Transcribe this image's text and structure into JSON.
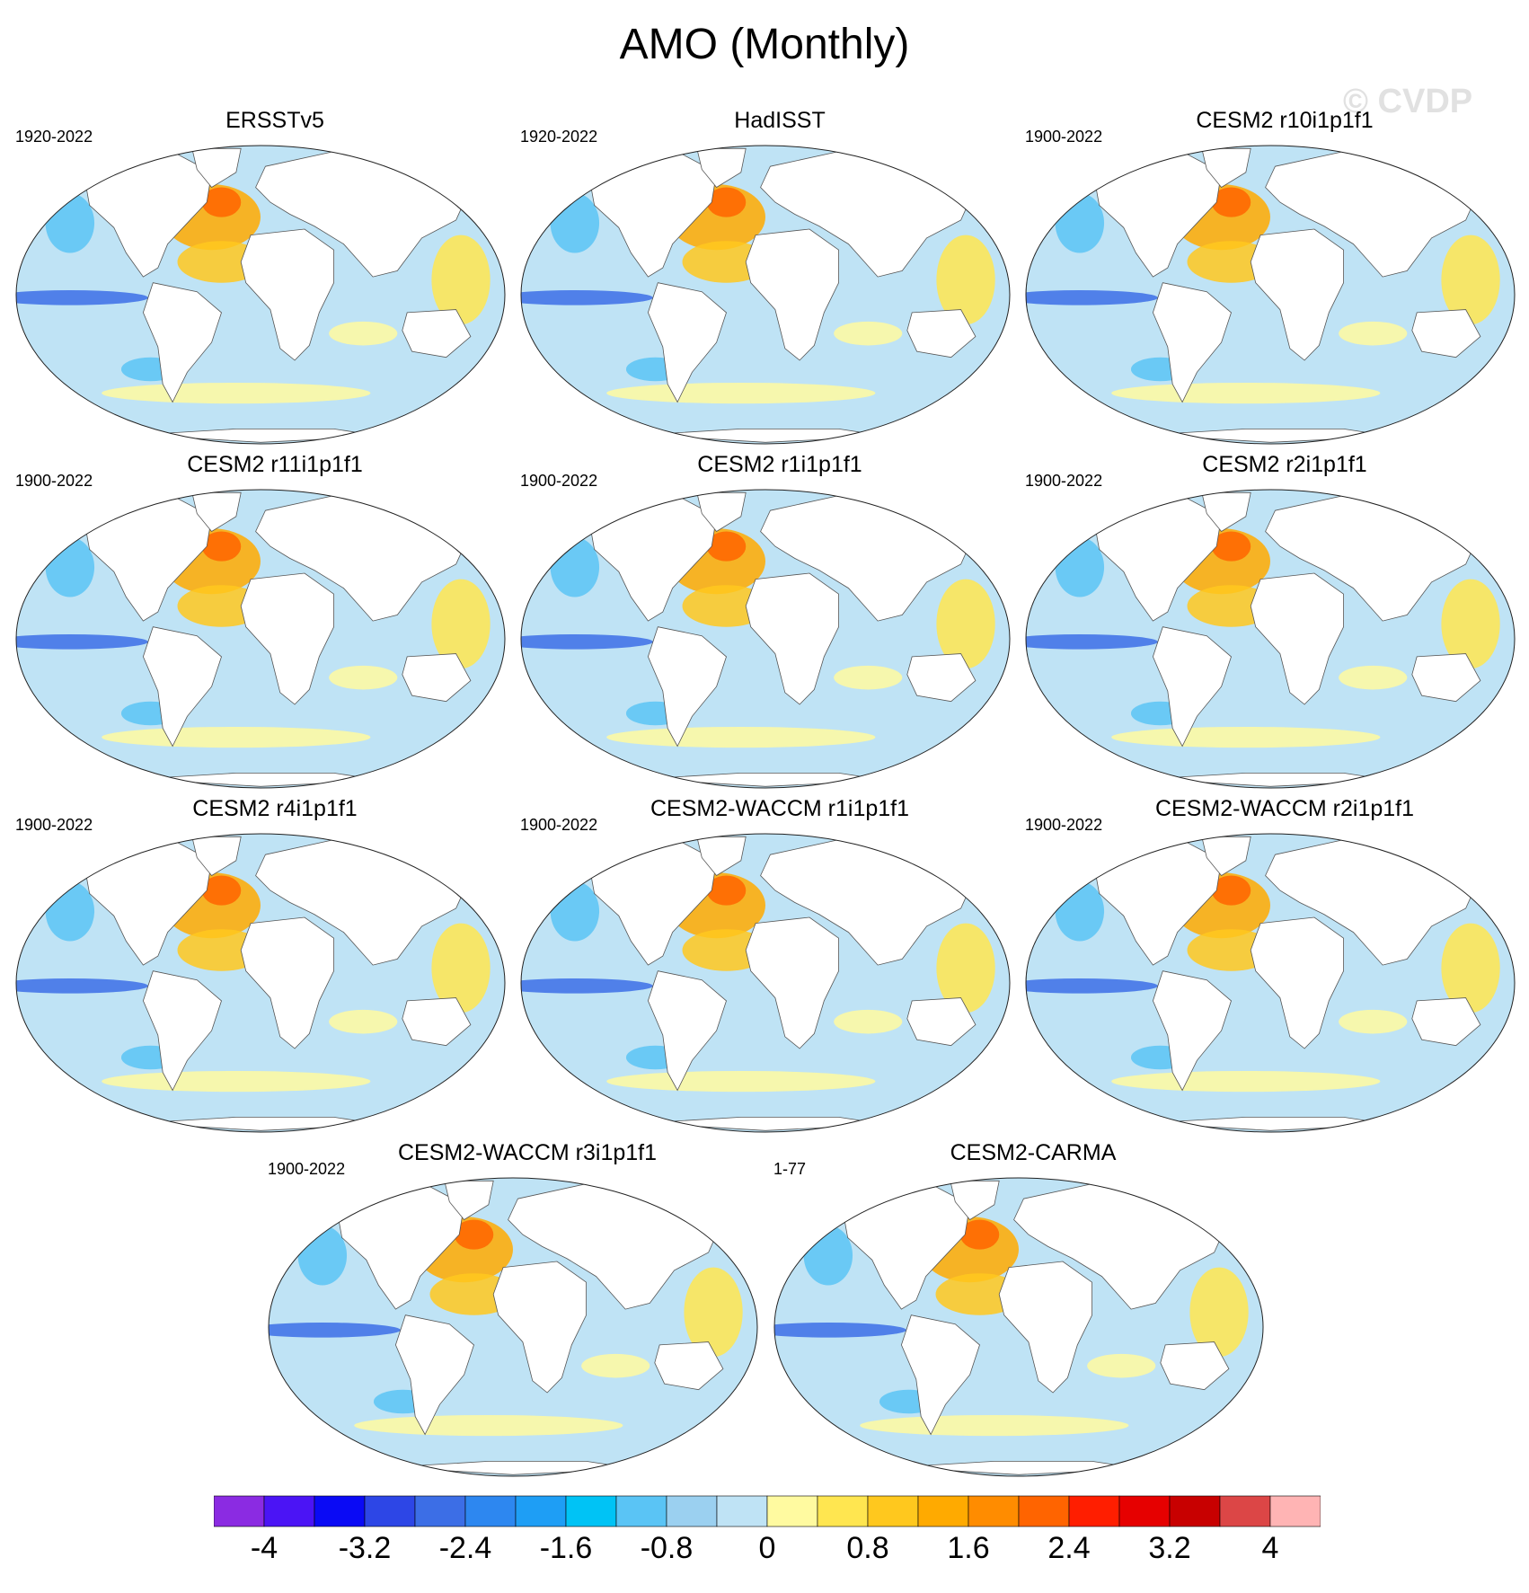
{
  "title": "AMO (Monthly)",
  "watermark": "© CVDP",
  "panels": [
    {
      "name": "ERSSTv5",
      "years": "1920-2022"
    },
    {
      "name": "HadISST",
      "years": "1920-2022"
    },
    {
      "name": "CESM2 r10i1p1f1",
      "years": "1900-2022"
    },
    {
      "name": "CESM2 r11i1p1f1",
      "years": "1900-2022"
    },
    {
      "name": "CESM2 r1i1p1f1",
      "years": "1900-2022"
    },
    {
      "name": "CESM2 r2i1p1f1",
      "years": "1900-2022"
    },
    {
      "name": "CESM2 r4i1p1f1",
      "years": "1900-2022"
    },
    {
      "name": "CESM2-WACCM r1i1p1f1",
      "years": "1900-2022"
    },
    {
      "name": "CESM2-WACCM r2i1p1f1",
      "years": "1900-2022"
    },
    {
      "name": "CESM2-WACCM r3i1p1f1",
      "years": "1900-2022"
    },
    {
      "name": "CESM2-CARMA",
      "years": "1-77"
    }
  ],
  "colorbar": {
    "colors": [
      "#8b2be2",
      "#4b14f5",
      "#0a0af5",
      "#2d46e6",
      "#3c6ee6",
      "#2d87f0",
      "#1e9ef5",
      "#00c3f5",
      "#5ac4f5",
      "#9bd0f0",
      "#bfe3f5",
      "#fffaa0",
      "#ffe650",
      "#ffc81e",
      "#ffaa00",
      "#ff8c00",
      "#ff6400",
      "#ff1e00",
      "#e60000",
      "#c80000",
      "#dc4646",
      "#ffb4b4"
    ],
    "labels": [
      "-4",
      "-3.2",
      "-2.4",
      "-1.6",
      "-0.8",
      "0",
      "0.8",
      "1.6",
      "2.4",
      "3.2",
      "4"
    ]
  }
}
